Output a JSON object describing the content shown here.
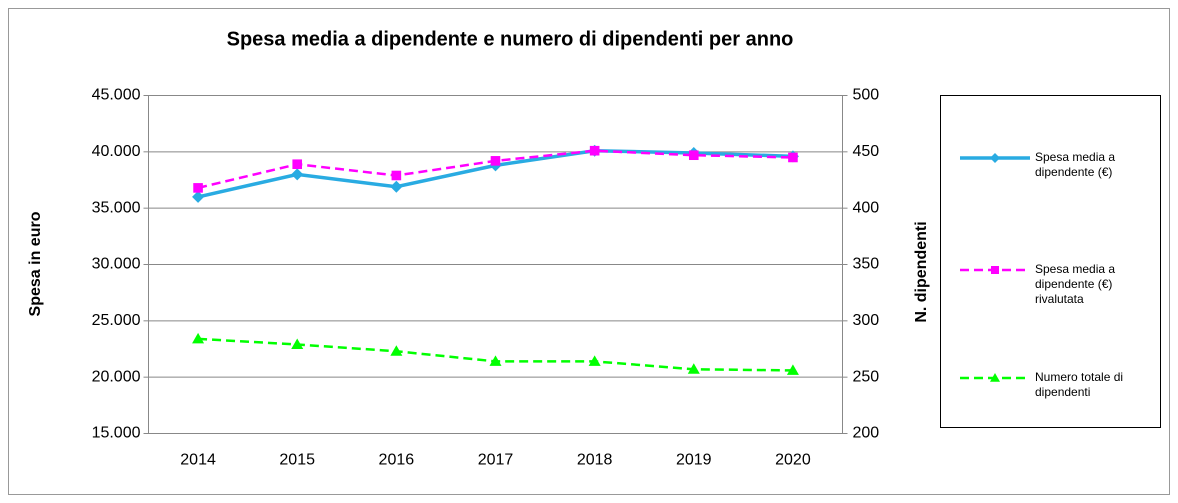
{
  "chart_data": {
    "type": "line",
    "title": "Spesa media a dipendente e numero di dipendenti per anno",
    "y_label": "Spesa in euro",
    "y2_label": "N. dipendenti",
    "categories": [
      "2014",
      "2015",
      "2016",
      "2017",
      "2018",
      "2019",
      "2020"
    ],
    "series": [
      {
        "name": "Spesa media a dipendente (€)",
        "color": "#29abe2",
        "marker": "diamond",
        "dashed": false,
        "values": [
          36000,
          38000,
          36900,
          38800,
          40100,
          39900,
          39600
        ]
      },
      {
        "name": "Spesa media a dipendente (€) rivalutata",
        "color": "#ff00ff",
        "marker": "square",
        "dashed": true,
        "values": [
          36800,
          38900,
          37900,
          39200,
          40100,
          39700,
          39500
        ]
      },
      {
        "name": "Numero totale di dipendenti",
        "color": "#00ff00",
        "marker": "triangle",
        "dashed": true,
        "axis": "y2",
        "values": [
          284,
          279,
          273,
          264,
          264,
          257,
          256
        ]
      }
    ],
    "ylim": [
      15000,
      45000
    ],
    "yticks": [
      {
        "value": 15000,
        "label": "15.000"
      },
      {
        "value": 20000,
        "label": "20.000"
      },
      {
        "value": 25000,
        "label": "25.000"
      },
      {
        "value": 30000,
        "label": "30.000"
      },
      {
        "value": 35000,
        "label": "35.000"
      },
      {
        "value": 40000,
        "label": "40.000"
      },
      {
        "value": 45000,
        "label": "45.000"
      }
    ],
    "y2lim": [
      200,
      500
    ],
    "y2ticks": [
      200,
      250,
      300,
      350,
      400,
      450,
      500
    ],
    "grid": true,
    "legend": "right"
  }
}
